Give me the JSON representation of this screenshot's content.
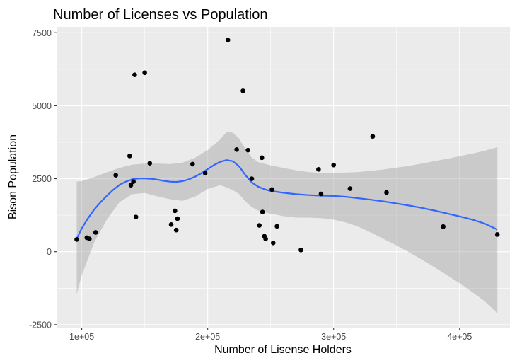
{
  "chart_data": {
    "type": "scatter",
    "title": "Number of Licenses vs Population",
    "xlabel": "Number of Lisense Holders",
    "ylabel": "Bison Population",
    "xlim": [
      80000,
      440000
    ],
    "ylim": [
      -2600,
      7700
    ],
    "x_ticks": [
      {
        "value": 100000,
        "label": "1e+05"
      },
      {
        "value": 200000,
        "label": "2e+05"
      },
      {
        "value": 300000,
        "label": "3e+05"
      },
      {
        "value": 400000,
        "label": "4e+05"
      }
    ],
    "y_ticks": [
      {
        "value": -2500,
        "label": "-2500"
      },
      {
        "value": 0,
        "label": "0"
      },
      {
        "value": 2500,
        "label": "2500"
      },
      {
        "value": 5000,
        "label": "5000"
      },
      {
        "value": 7500,
        "label": "7500"
      }
    ],
    "grid": true,
    "background": "#ebebeb",
    "grid_color": "#ffffff",
    "point_color": "#000000",
    "smooth_color": "#3366ff",
    "band_color": "#999999",
    "points": [
      {
        "x": 96000,
        "y": 420
      },
      {
        "x": 104000,
        "y": 480
      },
      {
        "x": 106000,
        "y": 440
      },
      {
        "x": 111000,
        "y": 660
      },
      {
        "x": 127000,
        "y": 2620
      },
      {
        "x": 138000,
        "y": 3280
      },
      {
        "x": 139000,
        "y": 2280
      },
      {
        "x": 141000,
        "y": 2400
      },
      {
        "x": 142000,
        "y": 6060
      },
      {
        "x": 143000,
        "y": 1190
      },
      {
        "x": 150000,
        "y": 6130
      },
      {
        "x": 154000,
        "y": 3030
      },
      {
        "x": 171000,
        "y": 930
      },
      {
        "x": 174000,
        "y": 1400
      },
      {
        "x": 175000,
        "y": 740
      },
      {
        "x": 176000,
        "y": 1130
      },
      {
        "x": 188000,
        "y": 3000
      },
      {
        "x": 198000,
        "y": 2690
      },
      {
        "x": 216000,
        "y": 7250
      },
      {
        "x": 223000,
        "y": 3500
      },
      {
        "x": 228000,
        "y": 5510
      },
      {
        "x": 232000,
        "y": 3480
      },
      {
        "x": 235000,
        "y": 2500
      },
      {
        "x": 241000,
        "y": 900
      },
      {
        "x": 243000,
        "y": 3220
      },
      {
        "x": 243500,
        "y": 1360
      },
      {
        "x": 245000,
        "y": 530
      },
      {
        "x": 246000,
        "y": 440
      },
      {
        "x": 251000,
        "y": 2130
      },
      {
        "x": 252000,
        "y": 300
      },
      {
        "x": 255000,
        "y": 870
      },
      {
        "x": 274000,
        "y": 60
      },
      {
        "x": 288000,
        "y": 2820
      },
      {
        "x": 290000,
        "y": 1980
      },
      {
        "x": 300000,
        "y": 2970
      },
      {
        "x": 313000,
        "y": 2160
      },
      {
        "x": 331000,
        "y": 3950
      },
      {
        "x": 342000,
        "y": 2030
      },
      {
        "x": 387000,
        "y": 860
      },
      {
        "x": 430000,
        "y": 590
      }
    ],
    "smooth_fit": [
      [
        96000,
        450
      ],
      [
        100000,
        800
      ],
      [
        105000,
        1150
      ],
      [
        110000,
        1450
      ],
      [
        115000,
        1700
      ],
      [
        120000,
        1920
      ],
      [
        125000,
        2120
      ],
      [
        130000,
        2290
      ],
      [
        135000,
        2400
      ],
      [
        140000,
        2480
      ],
      [
        145000,
        2510
      ],
      [
        150000,
        2510
      ],
      [
        155000,
        2500
      ],
      [
        160000,
        2470
      ],
      [
        165000,
        2430
      ],
      [
        170000,
        2400
      ],
      [
        175000,
        2390
      ],
      [
        180000,
        2420
      ],
      [
        185000,
        2480
      ],
      [
        190000,
        2570
      ],
      [
        195000,
        2690
      ],
      [
        200000,
        2830
      ],
      [
        205000,
        2970
      ],
      [
        210000,
        3080
      ],
      [
        215000,
        3140
      ],
      [
        220000,
        3100
      ],
      [
        225000,
        2920
      ],
      [
        230000,
        2620
      ],
      [
        235000,
        2370
      ],
      [
        240000,
        2230
      ],
      [
        245000,
        2140
      ],
      [
        250000,
        2080
      ],
      [
        260000,
        2020
      ],
      [
        270000,
        1970
      ],
      [
        280000,
        1940
      ],
      [
        290000,
        1920
      ],
      [
        300000,
        1910
      ],
      [
        310000,
        1880
      ],
      [
        320000,
        1830
      ],
      [
        330000,
        1780
      ],
      [
        340000,
        1720
      ],
      [
        350000,
        1650
      ],
      [
        360000,
        1580
      ],
      [
        370000,
        1500
      ],
      [
        380000,
        1410
      ],
      [
        390000,
        1310
      ],
      [
        400000,
        1210
      ],
      [
        410000,
        1100
      ],
      [
        420000,
        960
      ],
      [
        430000,
        760
      ]
    ],
    "band_upper": [
      [
        96000,
        2400
      ],
      [
        100000,
        2420
      ],
      [
        110000,
        2560
      ],
      [
        120000,
        2720
      ],
      [
        130000,
        2870
      ],
      [
        140000,
        2980
      ],
      [
        150000,
        3020
      ],
      [
        160000,
        3020
      ],
      [
        170000,
        3000
      ],
      [
        180000,
        3050
      ],
      [
        190000,
        3220
      ],
      [
        200000,
        3480
      ],
      [
        210000,
        3850
      ],
      [
        215000,
        4100
      ],
      [
        220000,
        4080
      ],
      [
        225000,
        3870
      ],
      [
        230000,
        3520
      ],
      [
        235000,
        3230
      ],
      [
        240000,
        3070
      ],
      [
        250000,
        2960
      ],
      [
        260000,
        2870
      ],
      [
        270000,
        2790
      ],
      [
        280000,
        2730
      ],
      [
        290000,
        2700
      ],
      [
        300000,
        2700
      ],
      [
        310000,
        2710
      ],
      [
        320000,
        2730
      ],
      [
        330000,
        2770
      ],
      [
        340000,
        2820
      ],
      [
        350000,
        2880
      ],
      [
        360000,
        2940
      ],
      [
        370000,
        3020
      ],
      [
        380000,
        3100
      ],
      [
        390000,
        3180
      ],
      [
        400000,
        3270
      ],
      [
        410000,
        3360
      ],
      [
        420000,
        3460
      ],
      [
        430000,
        3580
      ]
    ],
    "band_lower": [
      [
        96000,
        -1450
      ],
      [
        100000,
        -800
      ],
      [
        110000,
        330
      ],
      [
        120000,
        1110
      ],
      [
        130000,
        1700
      ],
      [
        140000,
        1970
      ],
      [
        150000,
        2010
      ],
      [
        160000,
        1900
      ],
      [
        170000,
        1800
      ],
      [
        180000,
        1740
      ],
      [
        190000,
        1890
      ],
      [
        200000,
        2150
      ],
      [
        210000,
        2280
      ],
      [
        215000,
        2200
      ],
      [
        220000,
        2110
      ],
      [
        225000,
        1970
      ],
      [
        230000,
        1720
      ],
      [
        235000,
        1530
      ],
      [
        240000,
        1410
      ],
      [
        250000,
        1300
      ],
      [
        260000,
        1220
      ],
      [
        270000,
        1170
      ],
      [
        280000,
        1170
      ],
      [
        290000,
        1150
      ],
      [
        300000,
        1100
      ],
      [
        310000,
        1000
      ],
      [
        320000,
        850
      ],
      [
        330000,
        650
      ],
      [
        340000,
        430
      ],
      [
        350000,
        210
      ],
      [
        360000,
        -20
      ],
      [
        370000,
        -270
      ],
      [
        380000,
        -530
      ],
      [
        390000,
        -800
      ],
      [
        400000,
        -1080
      ],
      [
        410000,
        -1380
      ],
      [
        420000,
        -1700
      ],
      [
        430000,
        -2100
      ]
    ]
  }
}
